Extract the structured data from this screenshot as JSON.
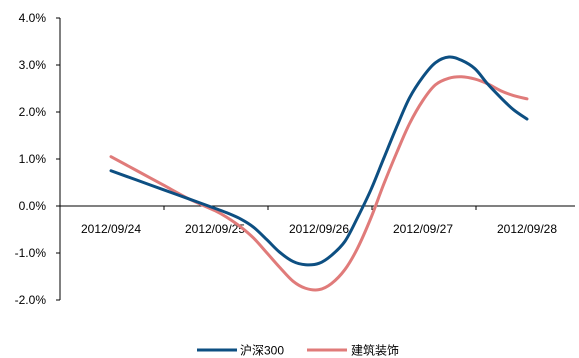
{
  "chart_data": {
    "type": "line",
    "title": "",
    "xlabel": "",
    "ylabel": "",
    "ylim": [
      -2.0,
      4.0
    ],
    "y_ticks": [
      "-2.0%",
      "-1.0%",
      "0.0%",
      "1.0%",
      "2.0%",
      "3.0%",
      "4.0%"
    ],
    "x_ticks": [
      "2012/09/24",
      "2012/09/25",
      "2012/09/26",
      "2012/09/27",
      "2012/09/28"
    ],
    "grid": false,
    "legend_position": "bottom",
    "x": [
      0,
      0.25,
      0.5,
      0.75,
      1.0,
      1.12,
      1.25,
      1.37,
      1.5,
      1.62,
      1.75,
      1.87,
      2.0,
      2.12,
      2.25,
      2.37,
      2.5,
      2.62,
      2.75,
      2.87,
      3.0,
      3.12,
      3.25,
      3.37,
      3.5,
      3.62,
      3.75,
      3.87,
      4.0
    ],
    "series": [
      {
        "name": "沪深300",
        "color": "#0d4f82",
        "values": [
          0.75,
          0.55,
          0.35,
          0.15,
          -0.05,
          -0.15,
          -0.28,
          -0.45,
          -0.72,
          -0.98,
          -1.18,
          -1.25,
          -1.22,
          -1.05,
          -0.75,
          -0.25,
          0.35,
          1.0,
          1.7,
          2.3,
          2.75,
          3.05,
          3.17,
          3.1,
          2.92,
          2.6,
          2.3,
          2.05,
          1.85
        ]
      },
      {
        "name": "建筑装饰",
        "color": "#e07b7a",
        "values": [
          1.05,
          0.75,
          0.45,
          0.15,
          -0.1,
          -0.25,
          -0.45,
          -0.68,
          -1.0,
          -1.3,
          -1.6,
          -1.75,
          -1.78,
          -1.65,
          -1.35,
          -0.9,
          -0.25,
          0.45,
          1.15,
          1.75,
          2.25,
          2.58,
          2.72,
          2.75,
          2.7,
          2.6,
          2.45,
          2.35,
          2.28
        ]
      }
    ]
  }
}
